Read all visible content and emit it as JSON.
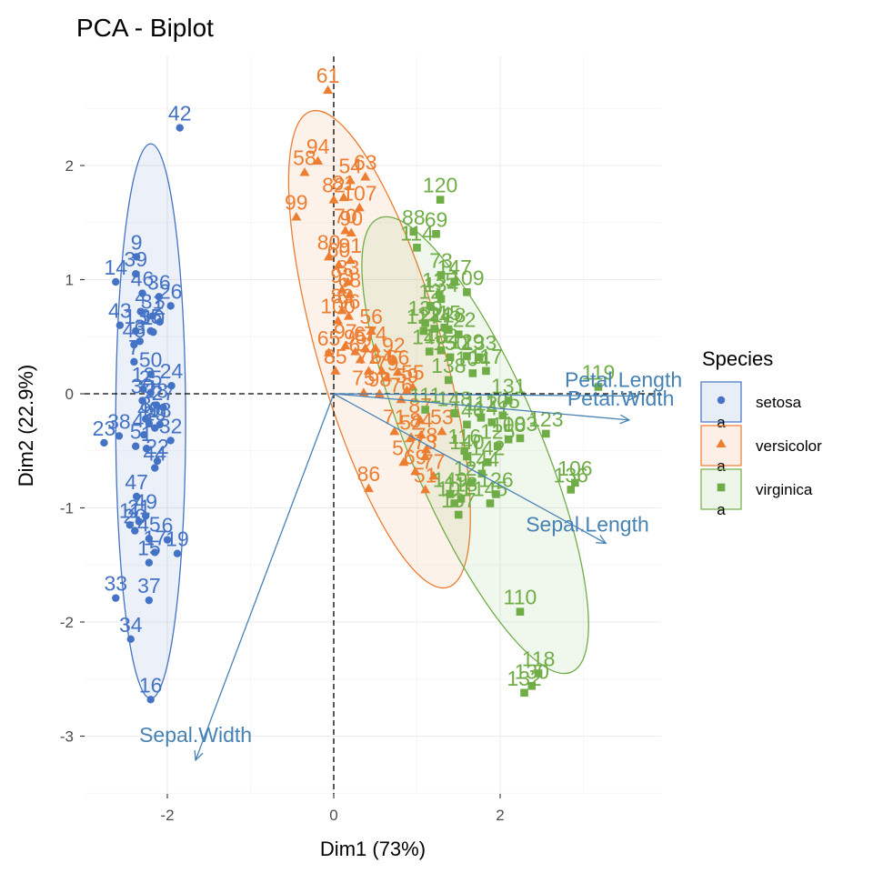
{
  "chart_data": {
    "type": "scatter",
    "title": "PCA - Biplot",
    "xlabel": "Dim1 (73%)",
    "ylabel": "Dim2 (22.9%)",
    "xlim": [
      -3.0,
      3.9
    ],
    "ylim": [
      -3.5,
      2.95
    ],
    "xticks": [
      -2,
      0,
      2
    ],
    "yticks": [
      -3,
      -2,
      -1,
      0,
      1,
      2
    ],
    "grid": true,
    "legend": {
      "title": "Species",
      "position": "right",
      "glyph_letter": "a"
    },
    "series": [
      {
        "name": "setosa",
        "color": "#4472C4",
        "shape": "circle",
        "ellipse": {
          "cx": -2.2,
          "cy": -0.24,
          "rx": 0.42,
          "ry": 2.43,
          "angle": 0
        },
        "points": [
          {
            "label": "42",
            "x": -1.85,
            "y": 2.33
          },
          {
            "label": "9",
            "x": -2.37,
            "y": 1.2
          },
          {
            "label": "14",
            "x": -2.62,
            "y": 0.98
          },
          {
            "label": "39",
            "x": -2.38,
            "y": 1.05
          },
          {
            "label": "46",
            "x": -2.3,
            "y": 0.88
          },
          {
            "label": "36",
            "x": -2.1,
            "y": 0.85
          },
          {
            "label": "26",
            "x": -1.96,
            "y": 0.77
          },
          {
            "label": "4",
            "x": -2.32,
            "y": 0.72
          },
          {
            "label": "31",
            "x": -2.18,
            "y": 0.68
          },
          {
            "label": "43",
            "x": -2.57,
            "y": 0.6
          },
          {
            "label": "13",
            "x": -2.38,
            "y": 0.55
          },
          {
            "label": "3",
            "x": -2.33,
            "y": 0.46
          },
          {
            "label": "48",
            "x": -2.4,
            "y": 0.43
          },
          {
            "label": "35",
            "x": -2.2,
            "y": 0.55
          },
          {
            "label": "2",
            "x": -2.09,
            "y": 0.63
          },
          {
            "label": "10",
            "x": -2.17,
            "y": 0.54
          },
          {
            "label": "7",
            "x": -2.4,
            "y": 0.28
          },
          {
            "label": "50",
            "x": -2.2,
            "y": 0.17
          },
          {
            "label": "24",
            "x": -1.95,
            "y": 0.07
          },
          {
            "label": "12",
            "x": -2.29,
            "y": 0.04
          },
          {
            "label": "25",
            "x": -2.2,
            "y": 0.01
          },
          {
            "label": "30",
            "x": -2.3,
            "y": -0.06
          },
          {
            "label": "28",
            "x": -2.13,
            "y": -0.1
          },
          {
            "label": "27",
            "x": -2.05,
            "y": -0.12
          },
          {
            "label": "23",
            "x": -2.76,
            "y": -0.43
          },
          {
            "label": "8",
            "x": -2.26,
            "y": -0.22
          },
          {
            "label": "40",
            "x": -2.22,
            "y": -0.26
          },
          {
            "label": "18",
            "x": -2.09,
            "y": -0.27
          },
          {
            "label": "29",
            "x": -2.15,
            "y": -0.3
          },
          {
            "label": "41",
            "x": -2.28,
            "y": -0.36
          },
          {
            "label": "1",
            "x": -2.25,
            "y": -0.48
          },
          {
            "label": "32",
            "x": -1.96,
            "y": -0.41
          },
          {
            "label": "38",
            "x": -2.58,
            "y": -0.37
          },
          {
            "label": "5",
            "x": -2.38,
            "y": -0.46
          },
          {
            "label": "44",
            "x": -2.15,
            "y": -0.65
          },
          {
            "label": "22",
            "x": -2.12,
            "y": -0.59
          },
          {
            "label": "47",
            "x": -2.37,
            "y": -0.9
          },
          {
            "label": "49",
            "x": -2.26,
            "y": -1.07
          },
          {
            "label": "21",
            "x": -2.34,
            "y": -1.12
          },
          {
            "label": "20",
            "x": -2.39,
            "y": -1.2
          },
          {
            "label": "45",
            "x": -2.22,
            "y": -1.27
          },
          {
            "label": "19",
            "x": -1.88,
            "y": -1.4
          },
          {
            "label": "17",
            "x": -2.15,
            "y": -1.39
          },
          {
            "label": "6",
            "x": -2.0,
            "y": -1.28
          },
          {
            "label": "11",
            "x": -2.45,
            "y": -1.15
          },
          {
            "label": "15",
            "x": -2.22,
            "y": -1.48
          },
          {
            "label": "33",
            "x": -2.62,
            "y": -1.79
          },
          {
            "label": "37",
            "x": -2.22,
            "y": -1.81
          },
          {
            "label": "34",
            "x": -2.44,
            "y": -2.15
          },
          {
            "label": "16",
            "x": -2.2,
            "y": -2.68
          }
        ]
      },
      {
        "name": "versicolor",
        "color": "#ED7D31",
        "shape": "triangle",
        "ellipse": {
          "cx": 0.55,
          "cy": 0.39,
          "rx": 0.75,
          "ry": 2.17,
          "angle": -16
        },
        "points": [
          {
            "label": "61",
            "x": -0.07,
            "y": 2.66
          },
          {
            "label": "94",
            "x": -0.19,
            "y": 2.04
          },
          {
            "label": "58",
            "x": -0.35,
            "y": 1.94
          },
          {
            "label": "99",
            "x": -0.45,
            "y": 1.55
          },
          {
            "label": "82",
            "x": 0.0,
            "y": 1.7
          },
          {
            "label": "54",
            "x": 0.2,
            "y": 1.87
          },
          {
            "label": "63",
            "x": 0.38,
            "y": 1.9
          },
          {
            "label": "107",
            "x": 0.31,
            "y": 1.63
          },
          {
            "label": "81",
            "x": 0.12,
            "y": 1.72
          },
          {
            "label": "70",
            "x": 0.14,
            "y": 1.43
          },
          {
            "label": "90",
            "x": 0.21,
            "y": 1.41
          },
          {
            "label": "91",
            "x": 0.2,
            "y": 1.17
          },
          {
            "label": "80",
            "x": -0.06,
            "y": 1.2
          },
          {
            "label": "60",
            "x": 0.06,
            "y": 1.13
          },
          {
            "label": "83",
            "x": 0.17,
            "y": 0.98
          },
          {
            "label": "93",
            "x": 0.1,
            "y": 0.91
          },
          {
            "label": "68",
            "x": 0.19,
            "y": 0.87
          },
          {
            "label": "89",
            "x": 0.1,
            "y": 0.73
          },
          {
            "label": "96",
            "x": 0.18,
            "y": 0.68
          },
          {
            "label": "100",
            "x": 0.05,
            "y": 0.64
          },
          {
            "label": "65",
            "x": -0.06,
            "y": 0.36
          },
          {
            "label": "97",
            "x": 0.14,
            "y": 0.42
          },
          {
            "label": "74",
            "x": 0.5,
            "y": 0.4
          },
          {
            "label": "95",
            "x": 0.26,
            "y": 0.37
          },
          {
            "label": "62",
            "x": 0.32,
            "y": 0.3
          },
          {
            "label": "56",
            "x": 0.45,
            "y": 0.55
          },
          {
            "label": "67",
            "x": 0.38,
            "y": 0.4
          },
          {
            "label": "85",
            "x": 0.02,
            "y": 0.2
          },
          {
            "label": "64",
            "x": 0.58,
            "y": 0.2
          },
          {
            "label": "92",
            "x": 0.72,
            "y": 0.3
          },
          {
            "label": "79",
            "x": 0.64,
            "y": 0.14
          },
          {
            "label": "72",
            "x": 0.42,
            "y": 0.2
          },
          {
            "label": "75",
            "x": 0.36,
            "y": 0.01
          },
          {
            "label": "98",
            "x": 0.55,
            "y": 0.0
          },
          {
            "label": "55",
            "x": 0.95,
            "y": 0.06
          },
          {
            "label": "59",
            "x": 0.88,
            "y": 0.03
          },
          {
            "label": "66",
            "x": 0.77,
            "y": 0.19
          },
          {
            "label": "76",
            "x": 0.81,
            "y": -0.05
          },
          {
            "label": "71",
            "x": 0.73,
            "y": -0.33
          },
          {
            "label": "84",
            "x": 1.05,
            "y": -0.36
          },
          {
            "label": "52",
            "x": 0.93,
            "y": -0.38
          },
          {
            "label": "87",
            "x": 1.04,
            "y": -0.23
          },
          {
            "label": "53",
            "x": 1.3,
            "y": -0.33
          },
          {
            "label": "57",
            "x": 0.84,
            "y": -0.6
          },
          {
            "label": "78",
            "x": 1.11,
            "y": -0.49
          },
          {
            "label": "86",
            "x": 0.42,
            "y": -0.83
          },
          {
            "label": "51",
            "x": 1.1,
            "y": -0.84
          },
          {
            "label": "77",
            "x": 1.2,
            "y": -0.72
          },
          {
            "label": "69",
            "x": 0.98,
            "y": -0.68
          },
          {
            "label": "73",
            "x": 1.1,
            "y": -0.55
          }
        ]
      },
      {
        "name": "virginica",
        "color": "#70AD47",
        "shape": "square",
        "ellipse": {
          "cx": 1.7,
          "cy": -0.45,
          "rx": 0.78,
          "ry": 2.16,
          "angle": -23
        },
        "points": [
          {
            "label": "120",
            "x": 1.28,
            "y": 1.7
          },
          {
            "label": "69",
            "x": 1.23,
            "y": 1.4
          },
          {
            "label": "88",
            "x": 0.96,
            "y": 1.42
          },
          {
            "label": "114",
            "x": 1.0,
            "y": 1.28
          },
          {
            "label": "73",
            "x": 1.29,
            "y": 1.04
          },
          {
            "label": "147",
            "x": 1.45,
            "y": 0.98
          },
          {
            "label": "109",
            "x": 1.6,
            "y": 0.89
          },
          {
            "label": "135",
            "x": 1.27,
            "y": 0.87
          },
          {
            "label": "134",
            "x": 1.29,
            "y": 0.83
          },
          {
            "label": "12",
            "x": 1.16,
            "y": 0.77
          },
          {
            "label": "127",
            "x": 1.08,
            "y": 0.55
          },
          {
            "label": "139",
            "x": 1.1,
            "y": 0.62
          },
          {
            "label": "124",
            "x": 1.21,
            "y": 0.57
          },
          {
            "label": "128",
            "x": 1.38,
            "y": 0.56
          },
          {
            "label": "115",
            "x": 1.33,
            "y": 0.58
          },
          {
            "label": "122",
            "x": 1.5,
            "y": 0.52
          },
          {
            "label": "102",
            "x": 1.29,
            "y": 0.38
          },
          {
            "label": "143",
            "x": 1.15,
            "y": 0.37
          },
          {
            "label": "150",
            "x": 1.4,
            "y": 0.32
          },
          {
            "label": "129",
            "x": 1.6,
            "y": 0.33
          },
          {
            "label": "133",
            "x": 1.75,
            "y": 0.32
          },
          {
            "label": "104",
            "x": 1.67,
            "y": 0.18
          },
          {
            "label": "117",
            "x": 1.83,
            "y": 0.2
          },
          {
            "label": "138",
            "x": 1.38,
            "y": 0.12
          },
          {
            "label": "111",
            "x": 1.1,
            "y": -0.14
          },
          {
            "label": "148",
            "x": 1.45,
            "y": -0.17
          },
          {
            "label": "112",
            "x": 1.77,
            "y": -0.21
          },
          {
            "label": "105",
            "x": 2.03,
            "y": -0.19
          },
          {
            "label": "131",
            "x": 2.1,
            "y": -0.06
          },
          {
            "label": "141",
            "x": 1.9,
            "y": -0.25
          },
          {
            "label": "146",
            "x": 1.6,
            "y": -0.27
          },
          {
            "label": "119",
            "x": 3.18,
            "y": 0.06
          },
          {
            "label": "123",
            "x": 2.55,
            "y": -0.35
          },
          {
            "label": "108",
            "x": 2.1,
            "y": -0.4
          },
          {
            "label": "103",
            "x": 2.24,
            "y": -0.39
          },
          {
            "label": "125",
            "x": 1.97,
            "y": -0.46
          },
          {
            "label": "140",
            "x": 1.6,
            "y": -0.55
          },
          {
            "label": "116",
            "x": 1.57,
            "y": -0.5
          },
          {
            "label": "142",
            "x": 1.85,
            "y": -0.6
          },
          {
            "label": "144",
            "x": 1.78,
            "y": -0.7
          },
          {
            "label": "121",
            "x": 1.65,
            "y": -0.78
          },
          {
            "label": "106",
            "x": 2.9,
            "y": -0.78
          },
          {
            "label": "136",
            "x": 2.85,
            "y": -0.84
          },
          {
            "label": "149",
            "x": 1.4,
            "y": -0.88
          },
          {
            "label": "101",
            "x": 1.45,
            "y": -0.96
          },
          {
            "label": "137",
            "x": 1.5,
            "y": -1.06
          },
          {
            "label": "113",
            "x": 1.53,
            "y": -0.92
          },
          {
            "label": "145",
            "x": 1.88,
            "y": -0.96
          },
          {
            "label": "126",
            "x": 1.95,
            "y": -0.88
          },
          {
            "label": "110",
            "x": 2.24,
            "y": -1.91
          },
          {
            "label": "118",
            "x": 2.46,
            "y": -2.45
          },
          {
            "label": "132",
            "x": 2.29,
            "y": -2.62
          },
          {
            "label": "130",
            "x": 2.38,
            "y": -2.56
          }
        ]
      }
    ],
    "variables": [
      {
        "label": "Petal.Length",
        "x": 3.65,
        "y": -0.02
      },
      {
        "label": "Petal.Width",
        "x": 3.55,
        "y": -0.23
      },
      {
        "label": "Sepal.Length",
        "x": 3.27,
        "y": -1.31
      },
      {
        "label": "Sepal.Width",
        "x": -1.66,
        "y": -3.21
      }
    ],
    "variable_color": "#4682B4"
  }
}
